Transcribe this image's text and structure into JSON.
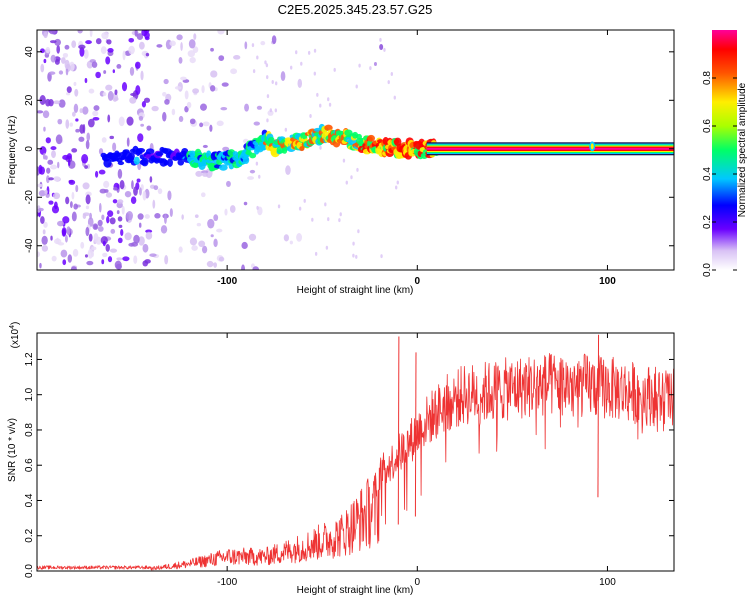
{
  "title": "C2E5.2025.345.23.57.G25",
  "chart_data": [
    {
      "type": "heatmap",
      "xlabel": "Height of straight line (km)",
      "ylabel": "Frequency (Hz)",
      "xlim": [
        -200,
        135
      ],
      "ylim": [
        -50,
        49
      ],
      "xticks": [
        -100,
        0,
        100
      ],
      "yticks": [
        -40,
        -20,
        0,
        20,
        40
      ],
      "ridge": [
        {
          "x": -160,
          "f": -3
        },
        {
          "x": -140,
          "f": -3
        },
        {
          "x": -120,
          "f": -4
        },
        {
          "x": -100,
          "f": -5
        },
        {
          "x": -90,
          "f": -2
        },
        {
          "x": -80,
          "f": 4
        },
        {
          "x": -75,
          "f": 1
        },
        {
          "x": -60,
          "f": 3
        },
        {
          "x": -50,
          "f": 6
        },
        {
          "x": -40,
          "f": 5
        },
        {
          "x": -30,
          "f": 2
        },
        {
          "x": -20,
          "f": 1
        },
        {
          "x": -10,
          "f": 0
        },
        {
          "x": 0,
          "f": 0
        },
        {
          "x": 10,
          "f": 0
        },
        {
          "x": 135,
          "f": 0
        }
      ],
      "colorbar": {
        "label": "Normalized spectral amplitude",
        "range": [
          0.0,
          1.0
        ],
        "ticks": [
          "0.0",
          "0.2",
          "0.4",
          "0.6",
          "0.8"
        ],
        "tick_values": [
          0.0,
          0.2,
          0.4,
          0.6,
          0.8
        ]
      }
    },
    {
      "type": "line",
      "xlabel": "Height of straight line (km)",
      "ylabel": "SNR (10 * v/v)",
      "scale_note": "(x10",
      "scale_exp": "4",
      "scale_close": ")",
      "xlim": [
        -200,
        135
      ],
      "ylim": [
        0.0,
        1.35
      ],
      "xticks": [
        -100,
        0,
        100
      ],
      "yticks": [
        "0.0",
        "0.2",
        "0.4",
        "0.6",
        "0.8",
        "1.0",
        "1.2"
      ],
      "ytick_values": [
        0.0,
        0.2,
        0.4,
        0.6,
        0.8,
        1.0,
        1.2
      ],
      "color": "#ee3333",
      "envelope": [
        {
          "x": -200,
          "y": 0.02
        },
        {
          "x": -140,
          "y": 0.02
        },
        {
          "x": -120,
          "y": 0.06
        },
        {
          "x": -100,
          "y": 0.12
        },
        {
          "x": -80,
          "y": 0.12
        },
        {
          "x": -60,
          "y": 0.2
        },
        {
          "x": -40,
          "y": 0.3
        },
        {
          "x": -25,
          "y": 0.5
        },
        {
          "x": -15,
          "y": 0.6
        },
        {
          "x": -5,
          "y": 0.72
        },
        {
          "x": 5,
          "y": 0.85
        },
        {
          "x": 15,
          "y": 0.95
        },
        {
          "x": 25,
          "y": 1.0
        },
        {
          "x": 40,
          "y": 1.02
        },
        {
          "x": 60,
          "y": 1.05
        },
        {
          "x": 80,
          "y": 1.06
        },
        {
          "x": 100,
          "y": 1.04
        },
        {
          "x": 120,
          "y": 1.0
        },
        {
          "x": 135,
          "y": 0.98
        }
      ],
      "spikes": [
        {
          "x": -10,
          "y": 1.33
        },
        {
          "x": -1,
          "y": 1.24
        },
        {
          "x": 95,
          "y": 1.34
        }
      ]
    }
  ]
}
